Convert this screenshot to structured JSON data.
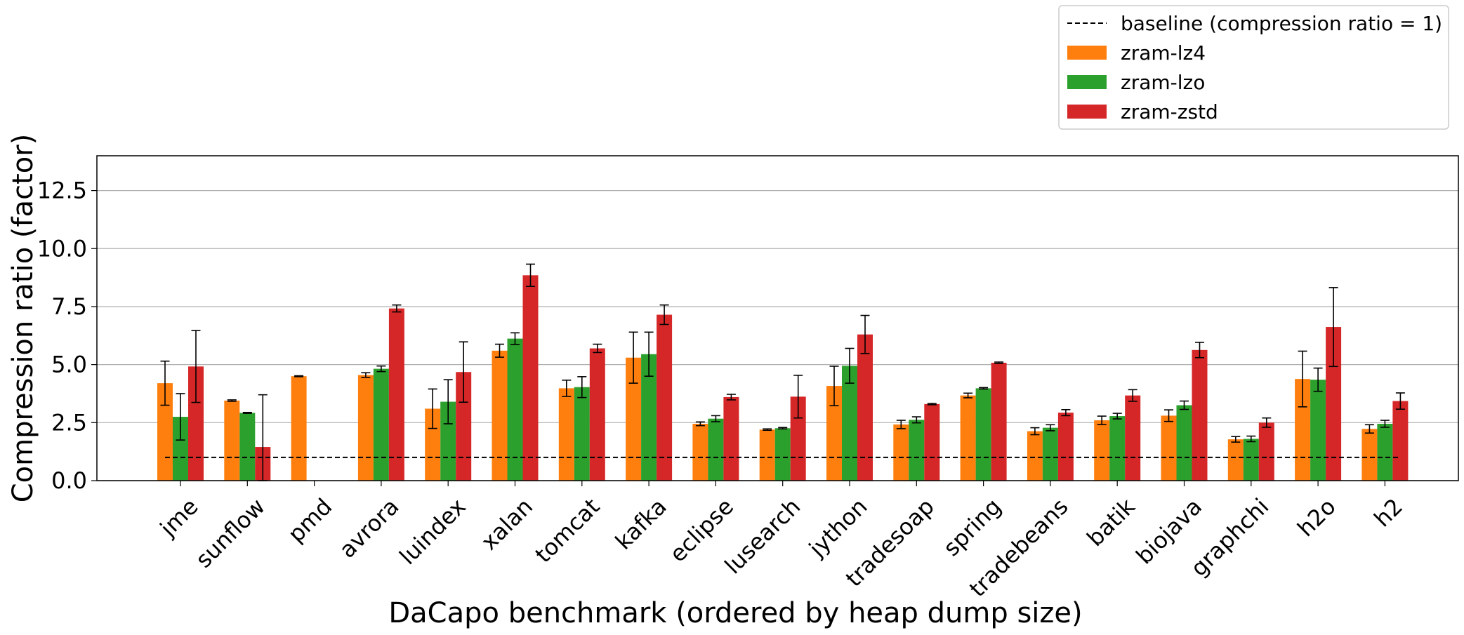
{
  "chart_data": {
    "type": "bar",
    "xlabel": "DaCapo benchmark (ordered by heap dump size)",
    "ylabel": "Compression ratio (factor)",
    "ylim": [
      0,
      14
    ],
    "yticks": [
      "0.0",
      "2.5",
      "5.0",
      "7.5",
      "10.0",
      "12.5"
    ],
    "grid": "horizontal",
    "legend_placement": "top-right, above plot",
    "categories": [
      "jme",
      "sunflow",
      "pmd",
      "avrora",
      "luindex",
      "xalan",
      "tomcat",
      "kafka",
      "eclipse",
      "lusearch",
      "jython",
      "tradesoap",
      "spring",
      "tradebeans",
      "batik",
      "biojava",
      "graphchi",
      "h2o",
      "h2"
    ],
    "baseline": {
      "name": "baseline (compression ratio = 1)",
      "value": 1,
      "color": "#000000"
    },
    "series": [
      {
        "name": "zram-lz4",
        "color": "#ff7f0e",
        "values": [
          4.2,
          3.45,
          4.5,
          4.55,
          3.1,
          5.6,
          3.98,
          5.3,
          2.45,
          2.2,
          4.08,
          2.42,
          3.67,
          2.13,
          2.6,
          2.8,
          1.78,
          4.38,
          2.23
        ],
        "errors": [
          0.95,
          0.03,
          0.02,
          0.1,
          0.85,
          0.28,
          0.35,
          1.1,
          0.08,
          0.03,
          0.85,
          0.18,
          0.1,
          0.15,
          0.18,
          0.25,
          0.12,
          1.2,
          0.18
        ]
      },
      {
        "name": "zram-lzo",
        "color": "#2ca02c",
        "values": [
          2.75,
          2.92,
          0,
          4.82,
          3.4,
          6.12,
          4.03,
          5.45,
          2.67,
          2.26,
          4.95,
          2.62,
          3.98,
          2.28,
          2.78,
          3.25,
          1.8,
          4.35,
          2.45
        ],
        "errors": [
          1.0,
          0.02,
          0,
          0.12,
          0.95,
          0.25,
          0.45,
          0.95,
          0.13,
          0.03,
          0.75,
          0.13,
          0.03,
          0.13,
          0.12,
          0.18,
          0.12,
          0.5,
          0.15
        ]
      },
      {
        "name": "zram-zstd",
        "color": "#d62728",
        "values": [
          4.92,
          1.45,
          0,
          7.42,
          4.68,
          8.85,
          5.7,
          7.15,
          3.6,
          3.62,
          6.3,
          3.3,
          5.08,
          2.93,
          3.67,
          5.63,
          2.5,
          6.62,
          3.43
        ],
        "errors": [
          1.55,
          2.25,
          0,
          0.15,
          1.3,
          0.48,
          0.18,
          0.42,
          0.12,
          0.92,
          0.82,
          0.03,
          0.03,
          0.13,
          0.25,
          0.33,
          0.2,
          1.7,
          0.35
        ]
      }
    ]
  }
}
